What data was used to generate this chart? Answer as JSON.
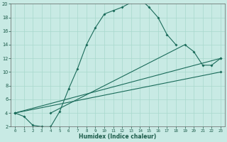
{
  "xlabel": "Humidex (Indice chaleur)",
  "xlim": [
    -0.5,
    23.5
  ],
  "ylim": [
    2,
    20
  ],
  "xticks": [
    0,
    1,
    2,
    3,
    4,
    5,
    6,
    7,
    8,
    9,
    10,
    11,
    12,
    13,
    14,
    15,
    16,
    17,
    18,
    19,
    20,
    21,
    22,
    23
  ],
  "yticks": [
    2,
    4,
    6,
    8,
    10,
    12,
    14,
    16,
    18,
    20
  ],
  "background_color": "#c8eae4",
  "line_color": "#1a6b5a",
  "grid_color": "#a8d8cc",
  "s1x": [
    0,
    1,
    2,
    3,
    4,
    5,
    6,
    7,
    8,
    9,
    10,
    11,
    12,
    13,
    14,
    15,
    16,
    17,
    18
  ],
  "s1y": [
    4.0,
    3.5,
    2.2,
    2.0,
    2.0,
    4.2,
    7.5,
    10.5,
    14.0,
    16.5,
    18.5,
    19.0,
    19.5,
    20.2,
    20.7,
    19.5,
    18.0,
    15.5,
    14.0
  ],
  "s2x": [
    4,
    19,
    20,
    21,
    22,
    23
  ],
  "s2y": [
    4.0,
    14.0,
    13.0,
    11.0,
    11.0,
    12.0
  ],
  "l1x": [
    0,
    23
  ],
  "l1y": [
    4.0,
    12.0
  ],
  "l2x": [
    0,
    23
  ],
  "l2y": [
    4.0,
    10.0
  ]
}
